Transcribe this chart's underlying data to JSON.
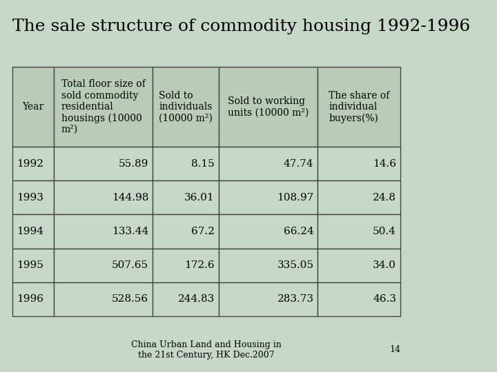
{
  "title": "The sale structure of commodity housing 1992-1996",
  "background_color": "#c8d8c8",
  "table_bg_color": "#c8d8c8",
  "header_bg_color": "#b8ccb8",
  "row_bg_color": "#c8d8c8",
  "col_headers": [
    "Year",
    "Total floor size of\nsold commodity\nresidential\nhousings (10000\nm²)",
    "Sold to\nindividuals\n(10000 m²)",
    "Sold to working\nunits (10000 m²)",
    "The share of\nindividual\nbuyers(%)"
  ],
  "rows": [
    [
      "1992",
      "55.89",
      "8.15",
      "47.74",
      "14.6"
    ],
    [
      "1993",
      "144.98",
      "36.01",
      "108.97",
      "24.8"
    ],
    [
      "1994",
      "133.44",
      "67.2",
      "66.24",
      "50.4"
    ],
    [
      "1995",
      "507.65",
      "172.6",
      "335.05",
      "34.0"
    ],
    [
      "1996",
      "528.56",
      "244.83",
      "283.73",
      "46.3"
    ]
  ],
  "footer_text": "China Urban Land and Housing in\nthe 21st Century, HK Dec.2007",
  "page_number": "14",
  "title_fontsize": 18,
  "header_fontsize": 10,
  "data_fontsize": 11,
  "footer_fontsize": 9
}
